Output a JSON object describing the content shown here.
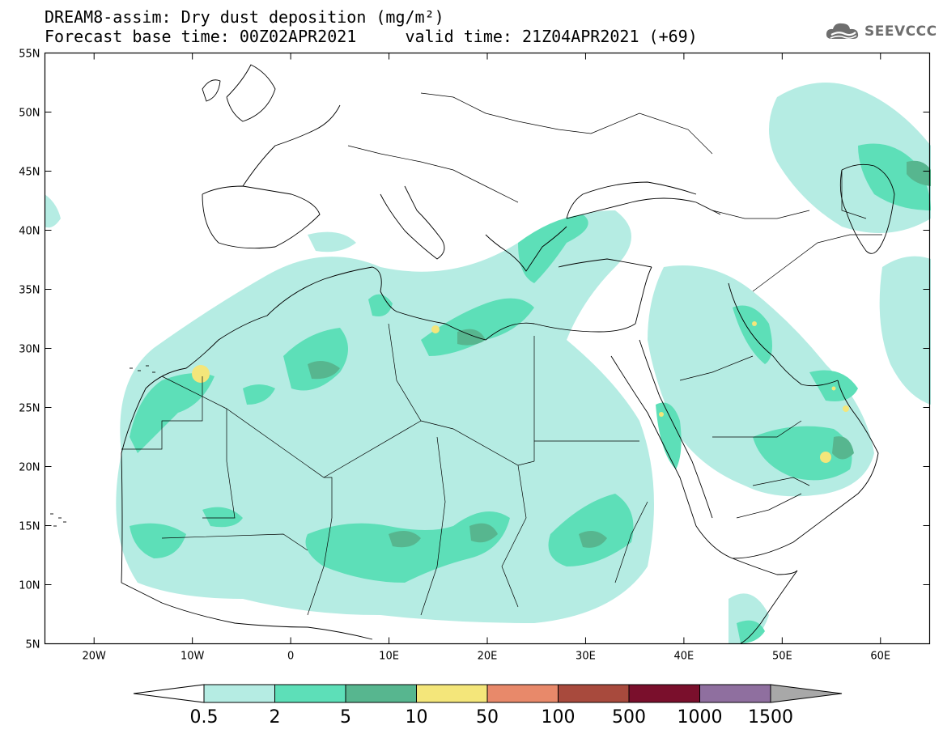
{
  "header": {
    "title_line1": "DREAM8-assim: Dry dust deposition (mg/m²)",
    "title_line2": "Forecast base time: 00Z02APR2021     valid time: 21Z04APR2021 (+69)"
  },
  "logo": {
    "text": "SEEVCCC",
    "icon": "cloud-icon"
  },
  "map": {
    "lon_range": [
      -25,
      65
    ],
    "lat_range": [
      5,
      55
    ],
    "lat_ticks": [
      {
        "value": 55,
        "label": "55N"
      },
      {
        "value": 50,
        "label": "50N"
      },
      {
        "value": 45,
        "label": "45N"
      },
      {
        "value": 40,
        "label": "40N"
      },
      {
        "value": 35,
        "label": "35N"
      },
      {
        "value": 30,
        "label": "30N"
      },
      {
        "value": 25,
        "label": "25N"
      },
      {
        "value": 20,
        "label": "20N"
      },
      {
        "value": 15,
        "label": "15N"
      },
      {
        "value": 10,
        "label": "10N"
      },
      {
        "value": 5,
        "label": "5N"
      }
    ],
    "lon_ticks": [
      {
        "value": -20,
        "label": "20W"
      },
      {
        "value": -10,
        "label": "10W"
      },
      {
        "value": 0,
        "label": "0"
      },
      {
        "value": 10,
        "label": "10E"
      },
      {
        "value": 20,
        "label": "20E"
      },
      {
        "value": 30,
        "label": "30E"
      },
      {
        "value": 40,
        "label": "40E"
      },
      {
        "value": 50,
        "label": "50E"
      },
      {
        "value": 60,
        "label": "60E"
      }
    ]
  },
  "colorbar": {
    "colors": [
      "#ffffff",
      "#b5ece3",
      "#5ddfb8",
      "#57b68f",
      "#f4e67a",
      "#e8896a",
      "#a84a3d",
      "#7a0f2c",
      "#8f6f9f",
      "#a8a8a8"
    ],
    "labels": [
      "0.5",
      "2",
      "5",
      "10",
      "50",
      "100",
      "500",
      "1000",
      "1500"
    ]
  }
}
